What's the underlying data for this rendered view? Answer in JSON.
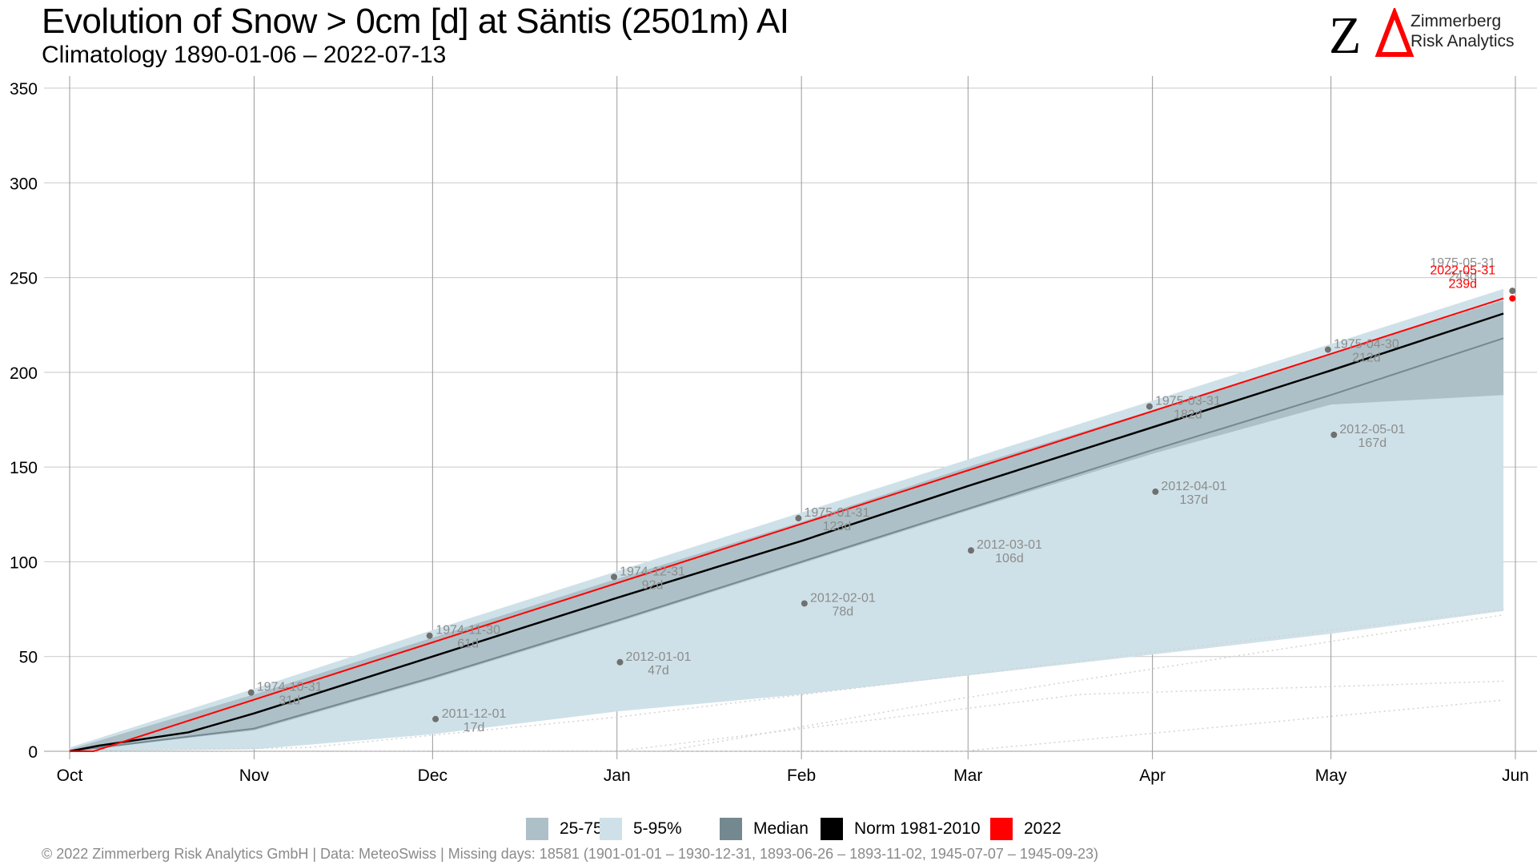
{
  "header": {
    "title": "Evolution of Snow > 0cm [d] at Säntis (2501m) AI",
    "subtitle": "Climatology 1890-01-06 – 2022-07-13"
  },
  "logo": {
    "mark": "ZΔ",
    "line1": "Zimmerberg",
    "line2": "Risk Analytics",
    "mark_color_z": "#000000",
    "mark_color_delta": "#ff0000"
  },
  "legend": {
    "items": [
      {
        "label": "25-75%",
        "color": "#aec0c7"
      },
      {
        "label": "5-95%",
        "color": "#cfe1e8"
      },
      {
        "label": "Median",
        "color": "#74888f"
      },
      {
        "label": "Norm 1981-2010",
        "color": "#000000"
      },
      {
        "label": "2022",
        "color": "#ff0000"
      }
    ]
  },
  "footer": {
    "text": "©  2022 Zimmerberg Risk Analytics GmbH | Data: MeteoSwiss | Missing days: 18581 (1901-01-01 – 1930-12-31, 1893-06-26 – 1893-11-02, 1945-07-07 – 1945-09-23)"
  },
  "chart_data": {
    "type": "line",
    "title": "Evolution of Snow > 0cm [d] at Säntis (2501m) AI",
    "subtitle": "Climatology 1890-01-06 – 2022-07-13",
    "xlabel": "",
    "ylabel": "",
    "x_axis": {
      "unit": "day of season",
      "range": [
        0,
        243
      ],
      "ticks": [
        {
          "label": "Oct",
          "day": 0
        },
        {
          "label": "Nov",
          "day": 31
        },
        {
          "label": "Dec",
          "day": 61
        },
        {
          "label": "Jan",
          "day": 92
        },
        {
          "label": "Feb",
          "day": 123
        },
        {
          "label": "Mar",
          "day": 151
        },
        {
          "label": "Apr",
          "day": 182
        },
        {
          "label": "May",
          "day": 212
        },
        {
          "label": "Jun",
          "day": 243
        }
      ]
    },
    "ylim": [
      0,
      350
    ],
    "yticks": [
      0,
      50,
      100,
      150,
      200,
      250,
      300,
      350
    ],
    "grid": true,
    "legend_position": "bottom",
    "colors": {
      "band_25_75": "#aec0c7",
      "band_5_95": "#cfe1e8",
      "median": "#74888f",
      "norm": "#000000",
      "current": "#ff0000",
      "annotation": "#8c8c8c",
      "grid": "#c8c8c8",
      "faint_lines": "#d2d2d2"
    },
    "series": [
      {
        "name": "5-95%",
        "kind": "band",
        "x": [
          0,
          31,
          61,
          92,
          123,
          151,
          182,
          212,
          241
        ],
        "lower": [
          0,
          1,
          9,
          21,
          30,
          40,
          51,
          62,
          74
        ],
        "upper": [
          2,
          33,
          64,
          95,
          126,
          154,
          185,
          215,
          244
        ]
      },
      {
        "name": "25-75%",
        "kind": "band",
        "x": [
          0,
          31,
          61,
          92,
          123,
          151,
          182,
          212,
          241
        ],
        "lower": [
          0,
          11,
          38,
          68,
          99,
          127,
          157,
          183,
          188
        ],
        "upper": [
          1,
          30,
          60,
          91,
          121,
          150,
          180,
          210,
          238
        ]
      },
      {
        "name": "Median",
        "kind": "line",
        "x": [
          0,
          31,
          61,
          92,
          123,
          151,
          182,
          212,
          241
        ],
        "values": [
          0,
          12,
          39,
          69,
          100,
          128,
          159,
          188,
          218
        ]
      },
      {
        "name": "Norm 1981-2010",
        "kind": "line",
        "x": [
          0,
          5,
          20,
          31,
          61,
          92,
          123,
          151,
          182,
          212,
          241
        ],
        "values": [
          0,
          3,
          10,
          20,
          50,
          81,
          111,
          140,
          171,
          201,
          231
        ]
      },
      {
        "name": "2022",
        "kind": "line",
        "x": [
          0,
          4,
          241
        ],
        "values": [
          0,
          0,
          239
        ]
      }
    ],
    "annotations": [
      {
        "date": "1974-10-31",
        "days": 31,
        "label": "31d",
        "day": 30.5
      },
      {
        "date": "1974-11-30",
        "days": 61,
        "label": "61d",
        "day": 60.5
      },
      {
        "date": "1974-12-31",
        "days": 92,
        "label": "92d",
        "day": 91.5
      },
      {
        "date": "1975-01-31",
        "days": 123,
        "label": "123d",
        "day": 122.5
      },
      {
        "date": "1975-03-31",
        "days": 182,
        "label": "182d",
        "day": 181.5
      },
      {
        "date": "1975-04-30",
        "days": 212,
        "label": "212d",
        "day": 211.5
      },
      {
        "date": "1975-05-31",
        "days": 243,
        "label": "243d",
        "day": 242.5
      },
      {
        "date": "2011-12-01",
        "days": 17,
        "label": "17d",
        "day": 61.5
      },
      {
        "date": "2012-01-01",
        "days": 47,
        "label": "47d",
        "day": 92.5
      },
      {
        "date": "2012-02-01",
        "days": 78,
        "label": "78d",
        "day": 123.5
      },
      {
        "date": "2012-03-01",
        "days": 106,
        "label": "106d",
        "day": 151.5
      },
      {
        "date": "2012-04-01",
        "days": 137,
        "label": "137d",
        "day": 182.5
      },
      {
        "date": "2012-05-01",
        "days": 167,
        "label": "167d",
        "day": 212.5
      },
      {
        "date": "2022-05-31",
        "days": 239,
        "label": "239d",
        "day": 242.5,
        "highlight": true
      }
    ]
  }
}
